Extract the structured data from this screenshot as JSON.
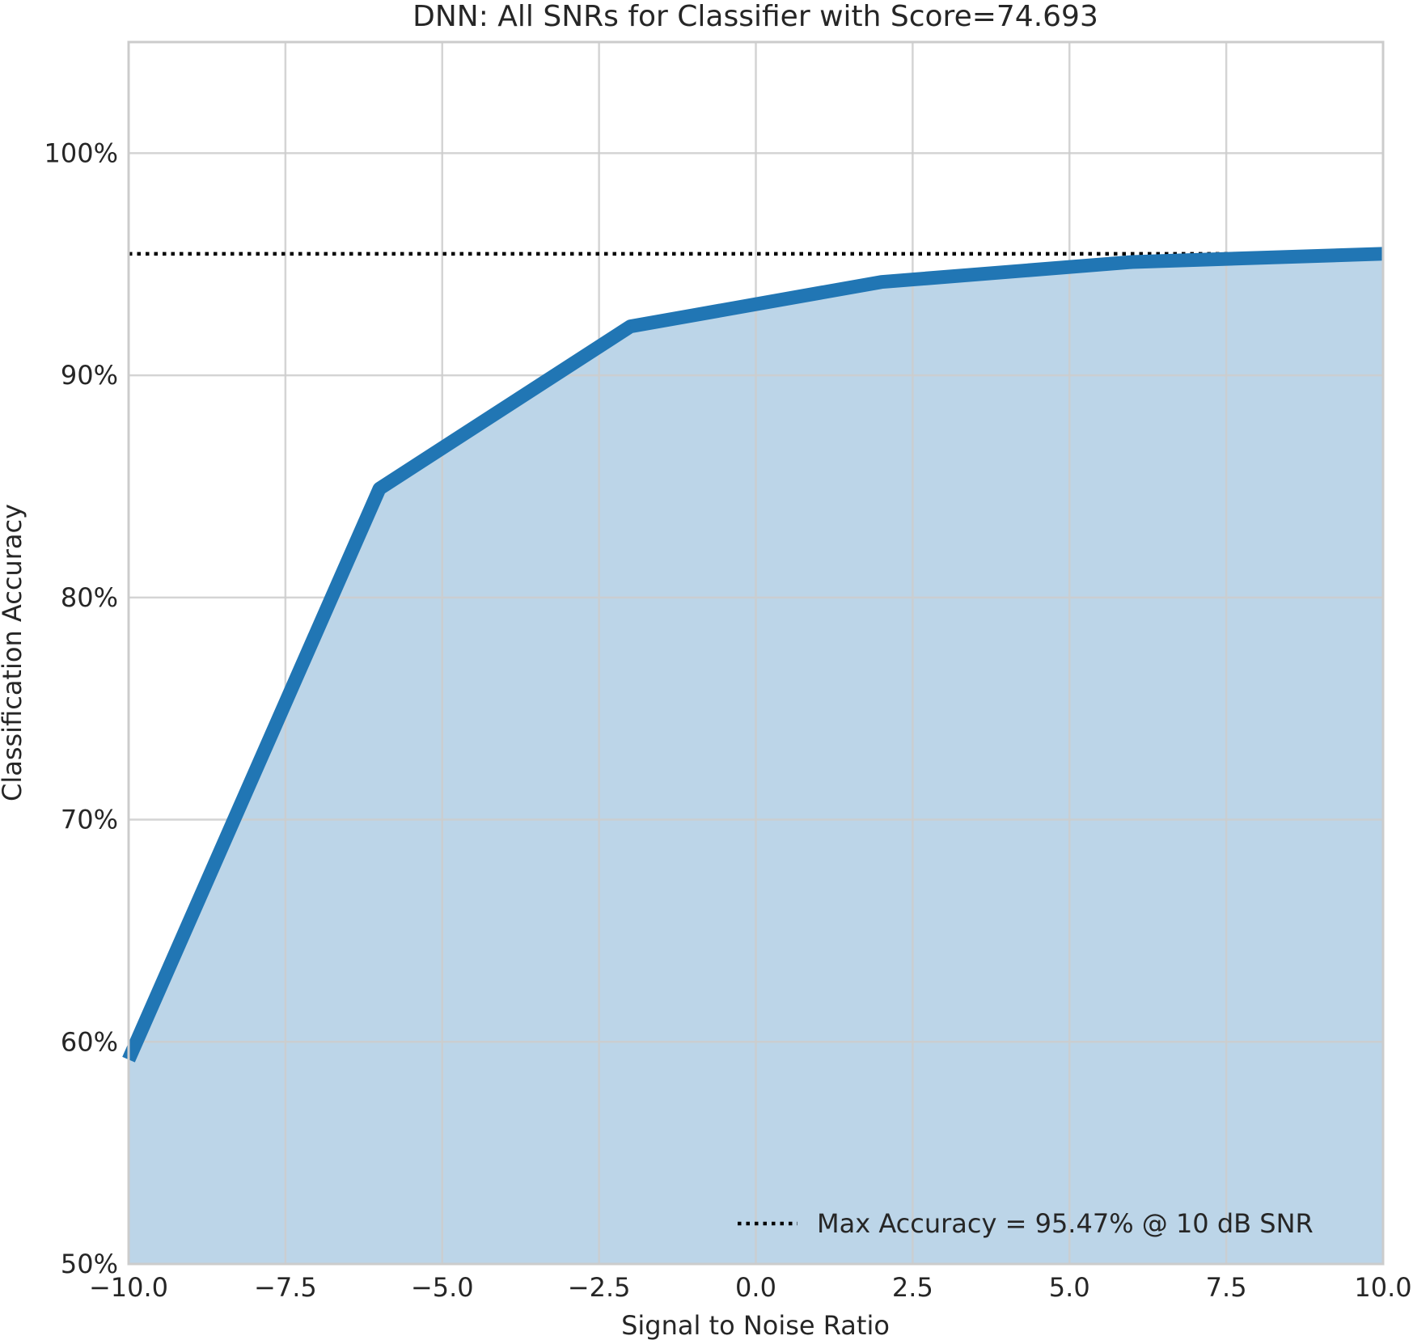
{
  "chart_data": {
    "type": "area",
    "title": "DNN: All SNRs for Classifier with Score=74.693",
    "xlabel": "Signal to Noise Ratio",
    "ylabel": "Classification Accuracy",
    "xlim": [
      -10,
      10
    ],
    "ylim": [
      50,
      105
    ],
    "x_ticks": [
      {
        "value": -10,
        "label": "−10.0"
      },
      {
        "value": -7.5,
        "label": "−7.5"
      },
      {
        "value": -5,
        "label": "−5.0"
      },
      {
        "value": -2.5,
        "label": "−2.5"
      },
      {
        "value": 0,
        "label": "0.0"
      },
      {
        "value": 2.5,
        "label": "2.5"
      },
      {
        "value": 5,
        "label": "5.0"
      },
      {
        "value": 7.5,
        "label": "7.5"
      },
      {
        "value": 10,
        "label": "10.0"
      }
    ],
    "y_ticks": [
      {
        "value": 50,
        "label": "50%"
      },
      {
        "value": 60,
        "label": "60%"
      },
      {
        "value": 70,
        "label": "70%"
      },
      {
        "value": 80,
        "label": "80%"
      },
      {
        "value": 90,
        "label": "90%"
      },
      {
        "value": 100,
        "label": "100%"
      }
    ],
    "grid": true,
    "series": [
      {
        "x": [
          -10,
          -6,
          -2,
          2,
          6,
          10
        ],
        "y": [
          59.2,
          84.9,
          92.2,
          94.2,
          95.1,
          95.47
        ]
      }
    ],
    "reference_line": {
      "y": 95.47,
      "style": "dotted"
    },
    "legend": {
      "position": "lower-right",
      "label": "Max Accuracy = 95.47% @ 10 dB SNR"
    },
    "colors": {
      "line": "#2176b4",
      "fill": "#bcd5e8",
      "grid": "#cccccc",
      "reference": "#000000"
    }
  }
}
